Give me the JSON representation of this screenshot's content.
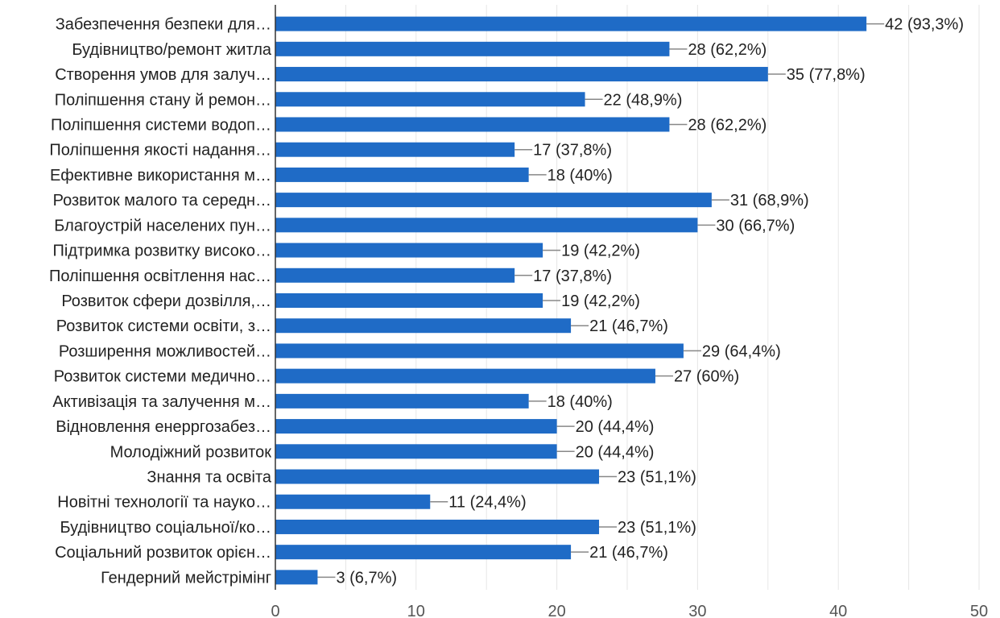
{
  "chart_data": {
    "type": "bar",
    "orientation": "horizontal",
    "categories": [
      "Забезпечення безпеки для…",
      "Будівництво/ремонт житла",
      "Створення умов для залуч…",
      "Поліпшення стану й ремон…",
      "Поліпшення системи водоп…",
      "Поліпшення якості надання…",
      "Ефективне використання м…",
      "Розвиток малого та середн…",
      "Благоустрій населених пун…",
      "Підтримка розвитку високо…",
      "Поліпшення освітлення нас…",
      "Розвиток сфери дозвілля,…",
      "Розвиток системи освіти, з…",
      "Розширення можливостей…",
      "Розвиток системи медично…",
      "Активізація та залучення м…",
      "Відновлення енерргозабез…",
      "Молодіжний розвиток",
      "Знання та освіта",
      "Новітні технології та науко…",
      "Будівництво соціальної/ко…",
      "Соціальний розвиток орієн…",
      "Гендерний мейстрімінг"
    ],
    "values": [
      42,
      28,
      35,
      22,
      28,
      17,
      18,
      31,
      30,
      19,
      17,
      19,
      21,
      29,
      27,
      18,
      20,
      20,
      23,
      11,
      23,
      21,
      3
    ],
    "value_labels": [
      "42 (93,3%)",
      "28 (62,2%)",
      "35 (77,8%)",
      "22 (48,9%)",
      "28 (62,2%)",
      "17 (37,8%)",
      "18 (40%)",
      "31 (68,9%)",
      "30 (66,7%)",
      "19 (42,2%)",
      "17 (37,8%)",
      "19 (42,2%)",
      "21 (46,7%)",
      "29 (64,4%)",
      "27 (60%)",
      "18 (40%)",
      "20 (44,4%)",
      "20 (44,4%)",
      "23 (51,1%)",
      "11 (24,4%)",
      "23 (51,1%)",
      "21 (46,7%)",
      "3 (6,7%)"
    ],
    "xlim": [
      0,
      50
    ],
    "x_ticks": [
      0,
      10,
      20,
      30,
      40,
      50
    ],
    "grid": true,
    "bar_color": "#1f6bc6",
    "grid_color": "#e6e6e6",
    "axis_color": "#333333",
    "leader_color": "#888888"
  }
}
